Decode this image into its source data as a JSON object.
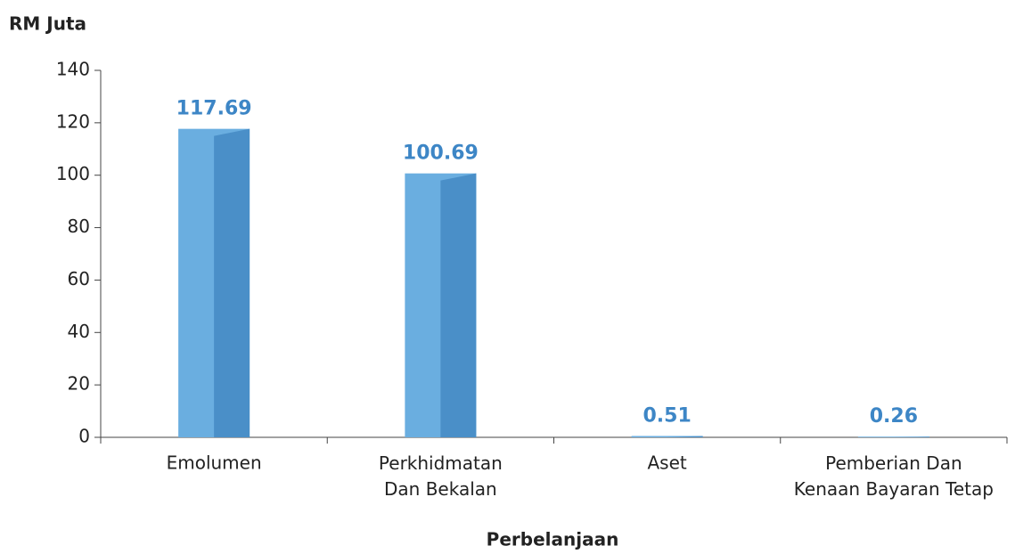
{
  "chart_data": {
    "type": "bar",
    "y_axis_label": "RM Juta",
    "x_axis_label": "Perbelanjaan",
    "categories": [
      "Emolumen",
      "Perkhidmatan Dan Bekalan",
      "Aset",
      "Pemberian Dan Kenaan Bayaran Tetap"
    ],
    "values": [
      117.69,
      100.69,
      0.51,
      0.26
    ],
    "color": "#6aaee0",
    "shade_color": "#4a8fc8",
    "label_color": "#3d86c6",
    "ylim": [
      0,
      140
    ],
    "yticks": [
      0,
      20,
      40,
      60,
      80,
      100,
      120,
      140
    ],
    "grid": false
  }
}
